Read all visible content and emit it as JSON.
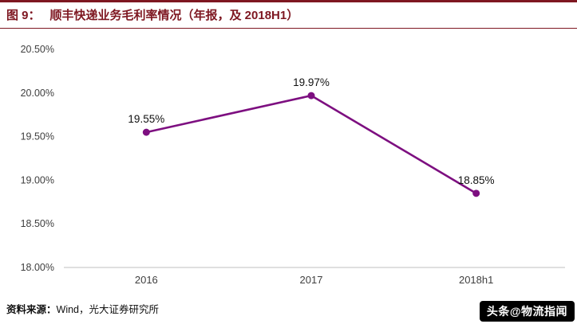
{
  "header": {
    "figure_label": "图 9：",
    "title": "顺丰快递业务毛利率情况（年报，及 2018H1）"
  },
  "chart_data": {
    "type": "line",
    "title": "顺丰快递业务毛利率情况（年报，及 2018H1）",
    "categories": [
      "2016",
      "2017",
      "2018h1"
    ],
    "values": [
      19.55,
      19.97,
      18.85
    ],
    "point_labels": [
      "19.55%",
      "19.97%",
      "18.85%"
    ],
    "ylim": [
      18.0,
      20.5
    ],
    "ytick_step": 0.5,
    "ytick_labels": [
      "18.00%",
      "18.50%",
      "19.00%",
      "19.50%",
      "20.00%",
      "20.50%"
    ],
    "xlabel": "",
    "ylabel": "",
    "grid": false,
    "legend": "none",
    "line_color": "#7D0F80"
  },
  "footer": {
    "source_label": "资料来源：",
    "source_text": "Wind，光大证券研究所",
    "watermark": "头条@物流指闻"
  },
  "colors": {
    "accent": "#7E1721",
    "line": "#7D0F80",
    "axis-line": "#bfbfbf",
    "tick-text": "#3f3f3f"
  }
}
